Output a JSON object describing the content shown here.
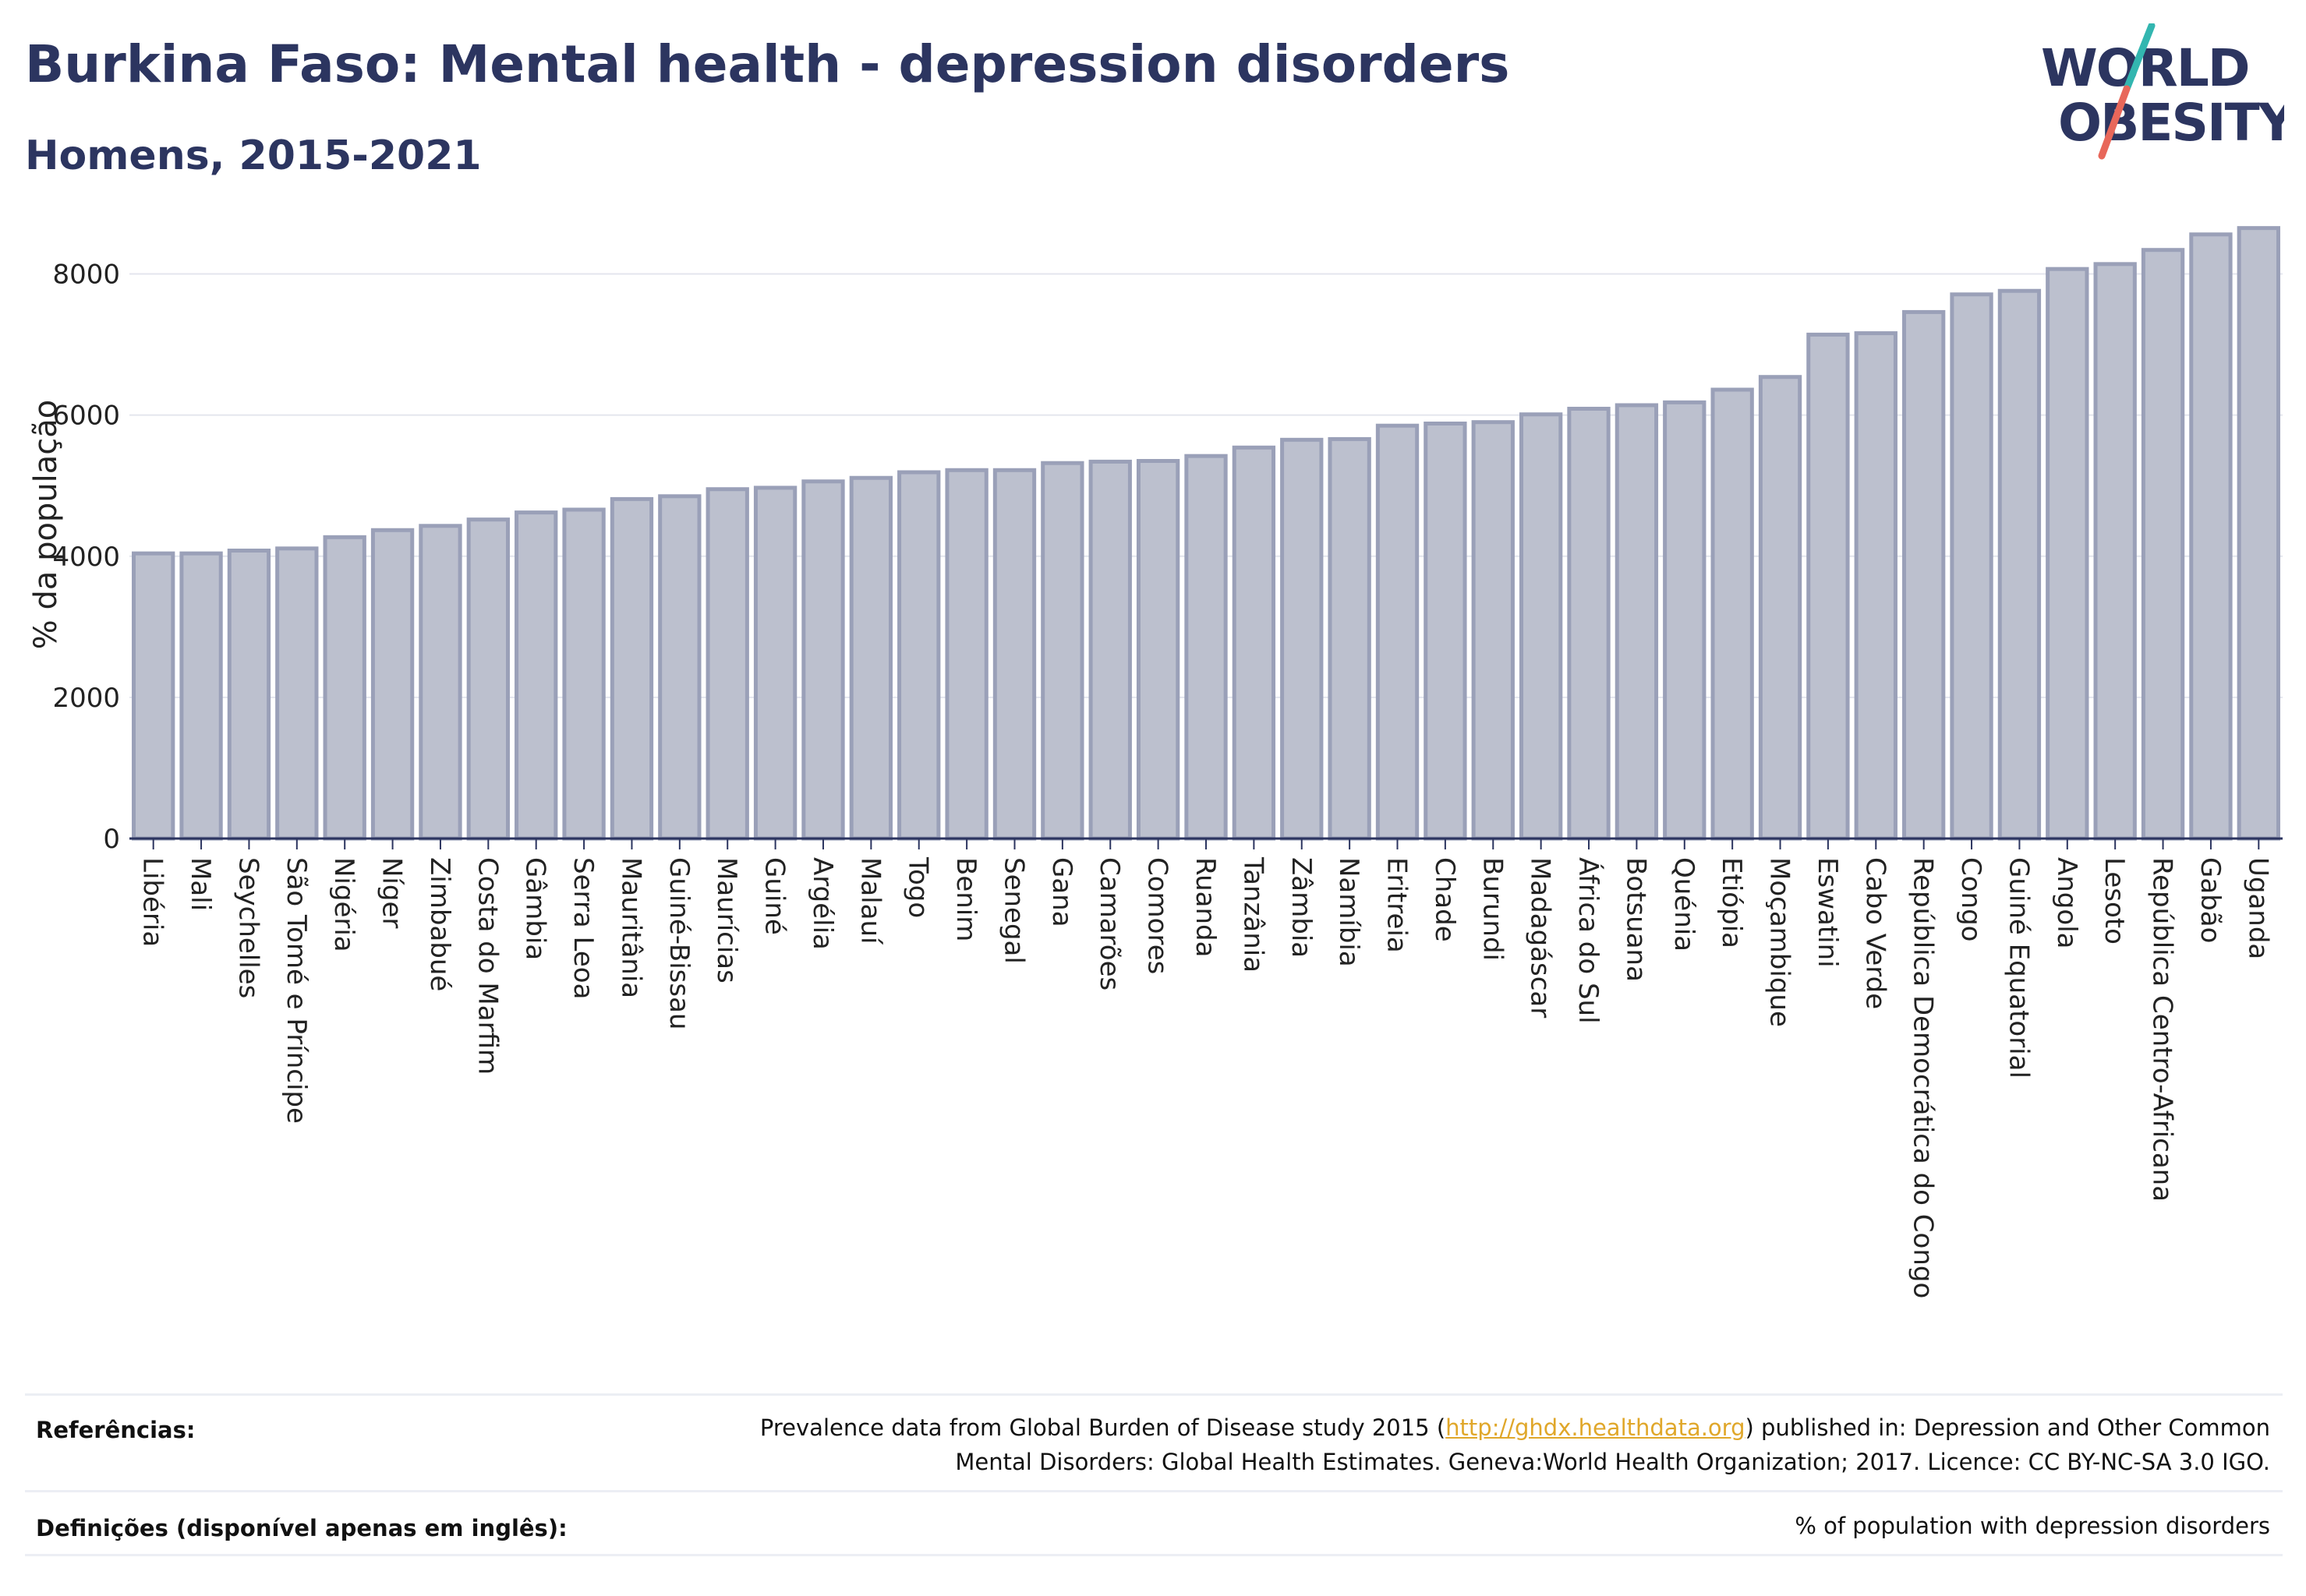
{
  "header": {
    "title": "Burkina Faso: Mental health - depression disorders",
    "subtitle": "Homens, 2015-2021"
  },
  "logo": {
    "line1": "WORLD",
    "line2": "OBESITY",
    "colors": {
      "text": "#2c3560",
      "slash_top": "#33b6b0",
      "slash_bottom": "#e8675a"
    }
  },
  "chart_data": {
    "type": "bar",
    "ylabel": "% da população",
    "xlabel": "",
    "ylim": [
      0,
      8900
    ],
    "yticks": [
      0,
      2000,
      4000,
      6000,
      8000
    ],
    "grid": true,
    "categories": [
      "Libéria",
      "Mali",
      "Seychelles",
      "São Tomé e Príncipe",
      "Nigéria",
      "Níger",
      "Zimbabué",
      "Costa do Marfim",
      "Gâmbia",
      "Serra Leoa",
      "Mauritânia",
      "Guiné-Bissau",
      "Maurícias",
      "Guiné",
      "Argélia",
      "Malauí",
      "Togo",
      "Benim",
      "Senegal",
      "Gana",
      "Camarões",
      "Comores",
      "Ruanda",
      "Tanzânia",
      "Zâmbia",
      "Namíbia",
      "Eritreia",
      "Chade",
      "Burundi",
      "Madagáscar",
      "África do Sul",
      "Botsuana",
      "Quénia",
      "Etiópia",
      "Moçambique",
      "Eswatini",
      "Cabo Verde",
      "República Democrática do Congo",
      "Congo",
      "Guiné Equatorial",
      "Angola",
      "Lesoto",
      "República Centro-Africana",
      "Gabão",
      "Uganda"
    ],
    "values": [
      4040,
      4040,
      4080,
      4110,
      4270,
      4370,
      4430,
      4520,
      4620,
      4660,
      4810,
      4850,
      4950,
      4970,
      5060,
      5110,
      5190,
      5220,
      5220,
      5320,
      5340,
      5350,
      5420,
      5540,
      5650,
      5660,
      5850,
      5880,
      5900,
      6010,
      6090,
      6140,
      6180,
      6360,
      6540,
      7140,
      7160,
      7460,
      7710,
      7760,
      8070,
      8140,
      8340,
      8560,
      8650
    ],
    "colors": {
      "bar_fill": "#bcc0ce",
      "bar_stroke": "#9aa0b8",
      "grid": "#e4e6ee",
      "axis": "#2c3560"
    }
  },
  "footer": {
    "references_label": "Referências:",
    "references_pre": "Prevalence data from Global Burden of Disease study 2015 (",
    "references_link": "http://ghdx.healthdata.org",
    "references_post": ") published in: Depression and Other Common",
    "references_line2": "Mental Disorders: Global Health Estimates. Geneva:World Health Organization; 2017. Licence: CC BY-NC-SA 3.0 IGO.",
    "definitions_label": "Definições (disponível apenas em inglês):",
    "definitions_text": "% of population with depression disorders"
  }
}
